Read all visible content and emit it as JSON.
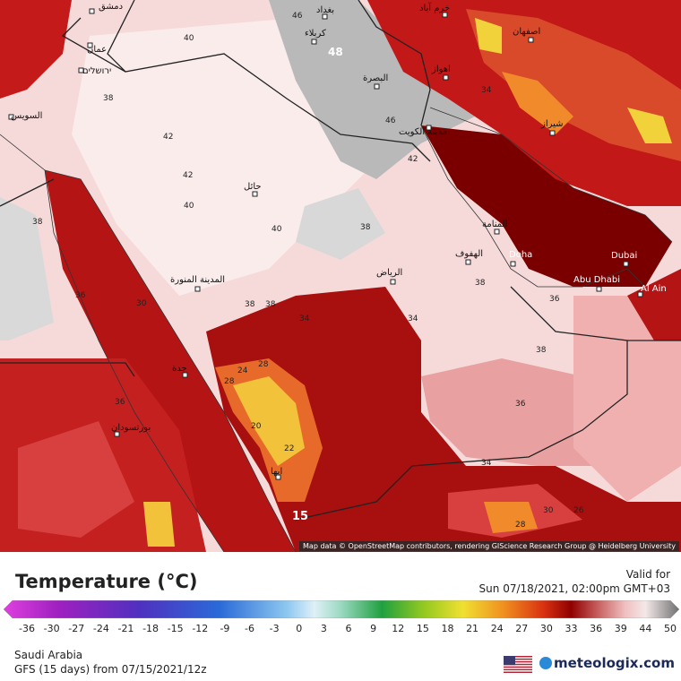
{
  "map": {
    "attribution": "Map data © OpenStreetMap contributors, rendering GIScience Research Group @ Heidelberg University",
    "cities": [
      {
        "name": "دمشق"
      },
      {
        "name": "عمان"
      },
      {
        "name": "ירושלים"
      },
      {
        "name": "بغداد"
      },
      {
        "name": "كربلاء"
      },
      {
        "name": "البصرة"
      },
      {
        "name": "اهواز"
      },
      {
        "name": "مدينة الكويت"
      },
      {
        "name": "حائل"
      },
      {
        "name": "المدينة المنورة"
      },
      {
        "name": "الرياض"
      },
      {
        "name": "جدة"
      },
      {
        "name": "بورتسودان"
      },
      {
        "name": "المنامة"
      },
      {
        "name": "الهفوف"
      },
      {
        "name": "Doha"
      },
      {
        "name": "Dubai"
      },
      {
        "name": "Abu Dhabi"
      },
      {
        "name": "Al Ain"
      },
      {
        "name": "اصفهان"
      },
      {
        "name": "شيراز"
      },
      {
        "name": "ابها"
      },
      {
        "name": "السويس"
      },
      {
        "name": "خرم آباد"
      }
    ],
    "temp_labels": [
      "40",
      "46",
      "48",
      "38",
      "42",
      "42",
      "40",
      "40",
      "38",
      "38",
      "38",
      "34",
      "34",
      "46",
      "42",
      "36",
      "38",
      "36",
      "38",
      "24",
      "28",
      "20",
      "22",
      "28",
      "30",
      "36",
      "15",
      "38",
      "26",
      "28",
      "30",
      "34",
      "34",
      "36"
    ]
  },
  "legend": {
    "title": "Temperature (°C)",
    "valid_label": "Valid for",
    "valid_time": "Sun 07/18/2021, 02:00pm GMT+03",
    "ticks": [
      "-36",
      "-30",
      "-27",
      "-24",
      "-21",
      "-18",
      "-15",
      "-12",
      "-9",
      "-6",
      "-3",
      "0",
      "3",
      "6",
      "9",
      "12",
      "15",
      "18",
      "21",
      "24",
      "27",
      "30",
      "33",
      "36",
      "39",
      "44",
      "50"
    ],
    "region": "Saudi Arabia",
    "model": "GFS (15 days) from  07/15/2021/12z",
    "brand": "meteologix.com",
    "colors": {
      "hot_dark": "#7a0000",
      "hot": "#b51414",
      "warm": "#e06060",
      "pink": "#f0b8b8",
      "pale": "#fae6e6",
      "grey": "#b5b5b5",
      "yellow": "#f2d23a",
      "orange": "#f08a2a"
    }
  }
}
